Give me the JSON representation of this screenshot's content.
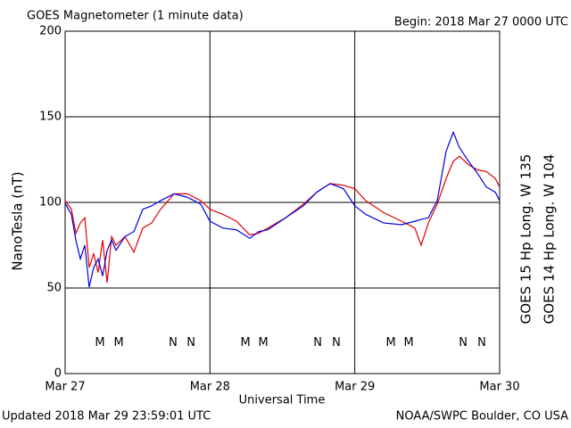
{
  "chart_data": {
    "type": "line",
    "title": "GOES Magnetometer (1 minute data)",
    "subtitle": "Begin:  2018 Mar 27 0000 UTC",
    "ylabel": "NanoTesla (nT)",
    "xlabel": "Universal Time",
    "footer_left": "Updated 2018 Mar 29 23:59:01 UTC",
    "footer_right": "NOAA/SWPC Boulder, CO USA",
    "xlim": [
      0,
      3
    ],
    "xticks": [
      {
        "value": 0,
        "label": "Mar 27"
      },
      {
        "value": 1,
        "label": "Mar 28"
      },
      {
        "value": 2,
        "label": "Mar 29"
      },
      {
        "value": 3,
        "label": "Mar 30"
      }
    ],
    "ylim": [
      0,
      200
    ],
    "yticks": [
      0,
      50,
      100,
      150,
      200
    ],
    "grid": true,
    "x": [
      0,
      0.043,
      0.074,
      0.105,
      0.136,
      0.166,
      0.197,
      0.228,
      0.259,
      0.29,
      0.321,
      0.351,
      0.413,
      0.475,
      0.536,
      0.598,
      0.659,
      0.752,
      0.844,
      0.937,
      1.0,
      1.09,
      1.183,
      1.275,
      1.337,
      1.399,
      1.522,
      1.645,
      1.738,
      1.83,
      1.922,
      2.0,
      2.076,
      2.2,
      2.323,
      2.415,
      2.458,
      2.508,
      2.569,
      2.631,
      2.68,
      2.723,
      2.785,
      2.847,
      2.908,
      2.97,
      3.0
    ],
    "series": [
      {
        "name": "GOES 15 Hp  Long. W 135",
        "color": "#e00000",
        "values": [
          101,
          96,
          82,
          88,
          91,
          62,
          70,
          59,
          78,
          53,
          80,
          75,
          80,
          71,
          85,
          88,
          96,
          105,
          105,
          101,
          96,
          93,
          89,
          81,
          82,
          85,
          91,
          99,
          106,
          111,
          110,
          108,
          101,
          94,
          89,
          85,
          75,
          88,
          99,
          114,
          124,
          127,
          122,
          119,
          118,
          114,
          109
        ]
      },
      {
        "name": "GOES 14 Hp  Long. W 104",
        "color": "#0000e0",
        "values": [
          99.5,
          93,
          78,
          67,
          75,
          50.5,
          62,
          67,
          57,
          72,
          78,
          72,
          80,
          83,
          96,
          98,
          101,
          105,
          103,
          99,
          89,
          85,
          84,
          79,
          83,
          84,
          91,
          98,
          106,
          111,
          108,
          98,
          93,
          88,
          87,
          89,
          90,
          91,
          101,
          130,
          141,
          132,
          124,
          117,
          109,
          106,
          101
        ]
      }
    ],
    "markers": [
      {
        "label": "M",
        "color": "#0000e0",
        "x": 0.24,
        "y": 18
      },
      {
        "label": "M",
        "color": "#e00000",
        "x": 0.37,
        "y": 18
      },
      {
        "label": "N",
        "color": "#0000e0",
        "x": 0.745,
        "y": 18
      },
      {
        "label": "N",
        "color": "#e00000",
        "x": 0.869,
        "y": 18
      },
      {
        "label": "M",
        "color": "#0000e0",
        "x": 1.245,
        "y": 18
      },
      {
        "label": "M",
        "color": "#e00000",
        "x": 1.368,
        "y": 18
      },
      {
        "label": "N",
        "color": "#0000e0",
        "x": 1.744,
        "y": 18
      },
      {
        "label": "N",
        "color": "#e00000",
        "x": 1.873,
        "y": 18
      },
      {
        "label": "M",
        "color": "#0000e0",
        "x": 2.249,
        "y": 18
      },
      {
        "label": "M",
        "color": "#e00000",
        "x": 2.372,
        "y": 18
      },
      {
        "label": "N",
        "color": "#0000e0",
        "x": 2.748,
        "y": 18
      },
      {
        "label": "N",
        "color": "#e00000",
        "x": 2.877,
        "y": 18
      }
    ]
  }
}
